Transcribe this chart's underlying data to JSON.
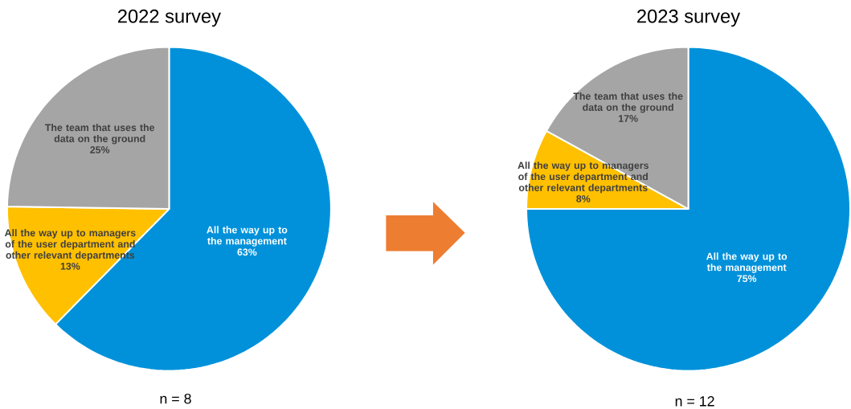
{
  "chart_data": [
    {
      "type": "pie",
      "title": "2022 survey",
      "categories": [
        "All the way up to the management",
        "All the way up to managers of the user department and other relevant departments",
        "The team that uses the data on the ground"
      ],
      "values": [
        63,
        13,
        25
      ],
      "value_labels": [
        "63%",
        "13%",
        "25%"
      ],
      "colors": [
        "#0091da",
        "#ffc000",
        "#a5a5a5"
      ],
      "annotations": [
        "n = 8"
      ]
    },
    {
      "type": "pie",
      "title": "2023 survey",
      "categories": [
        "All the way up to the management",
        "All the way up to managers of the user department and other relevant departments",
        "The team that uses the data on the ground"
      ],
      "values": [
        75,
        8,
        17
      ],
      "value_labels": [
        "75%",
        "8%",
        "17%"
      ],
      "colors": [
        "#0091da",
        "#ffc000",
        "#a5a5a5"
      ],
      "annotations": [
        "n = 12"
      ]
    }
  ]
}
